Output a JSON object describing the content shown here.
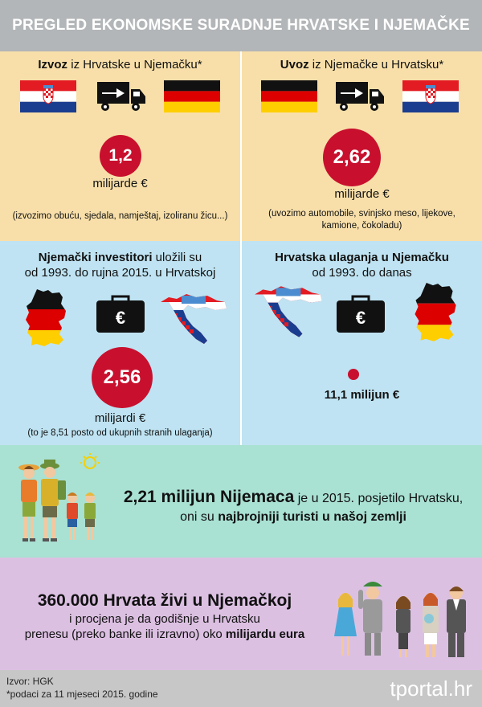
{
  "header": {
    "title": "PREGLED EKONOMSKE SURADNJE HRVATSKE I NJEMAČKE"
  },
  "export": {
    "title_bold": "Izvoz",
    "title_rest": " iz Hrvatske u Njemačku*",
    "value": "1,2",
    "unit": "milijarde €",
    "note": "(izvozimo obuću, sjedala, namještaj, izoliranu žicu...)",
    "icons": [
      "croatia-flag-icon",
      "truck-arrow-icon",
      "germany-flag-icon"
    ]
  },
  "import": {
    "title_bold": "Uvoz",
    "title_rest": " iz Njemačke u Hrvatsku*",
    "value": "2,62",
    "unit": "milijarde €",
    "note_line1": "(uvozimo automobile, svinjsko meso, lijekove,",
    "note_line2": "kamione, čokoladu)",
    "icons": [
      "germany-flag-icon",
      "truck-arrow-icon",
      "croatia-flag-icon"
    ]
  },
  "german_invest": {
    "title_bold": "Njemački investitori",
    "title_rest": " uložili su",
    "title_line2": "od 1993. do rujna 2015. u Hrvatskoj",
    "value": "2,56",
    "unit": "milijardi €",
    "note": "(to je 8,51 posto od ukupnih stranih ulaganja)",
    "icons": [
      "germany-map-icon",
      "euro-briefcase-icon",
      "croatia-map-icon"
    ]
  },
  "croatian_invest": {
    "title_bold": "Hrvatska ulaganja u Njemačku",
    "title_line2": "od 1993. do danas",
    "value": "11,1 milijun €",
    "icons": [
      "croatia-map-icon",
      "euro-briefcase-icon",
      "germany-map-icon"
    ]
  },
  "tourists": {
    "line1_bold": "2,21 milijun Nijemaca",
    "line1_rest": " je u 2015. posjetilo Hrvatsku,",
    "line2_rest": "oni su ",
    "line2_bold": "najbrojniji turisti u našoj zemlji",
    "icon": "tourist-family-icon"
  },
  "diaspora": {
    "line1_bold": "360.000 Hrvata živi u Njemačkoj",
    "line2": "i procjena je da godišnje u Hrvatsku",
    "line3_rest": "prenesu (preko banke ili izravno) oko ",
    "line3_bold": "milijardu eura",
    "icon": "croatian-people-icon"
  },
  "footer": {
    "source": "Izvor: HGK",
    "note": "*podaci za 11 mjeseci 2015. godine",
    "brand": "tportal.hr"
  },
  "colors": {
    "red": "#c8102e",
    "header_gray": "#b3b6b8",
    "sand": "#f8dfa9",
    "sky": "#bfe3f2",
    "mint": "#a9e1d3",
    "lilac": "#dcc0e2"
  }
}
